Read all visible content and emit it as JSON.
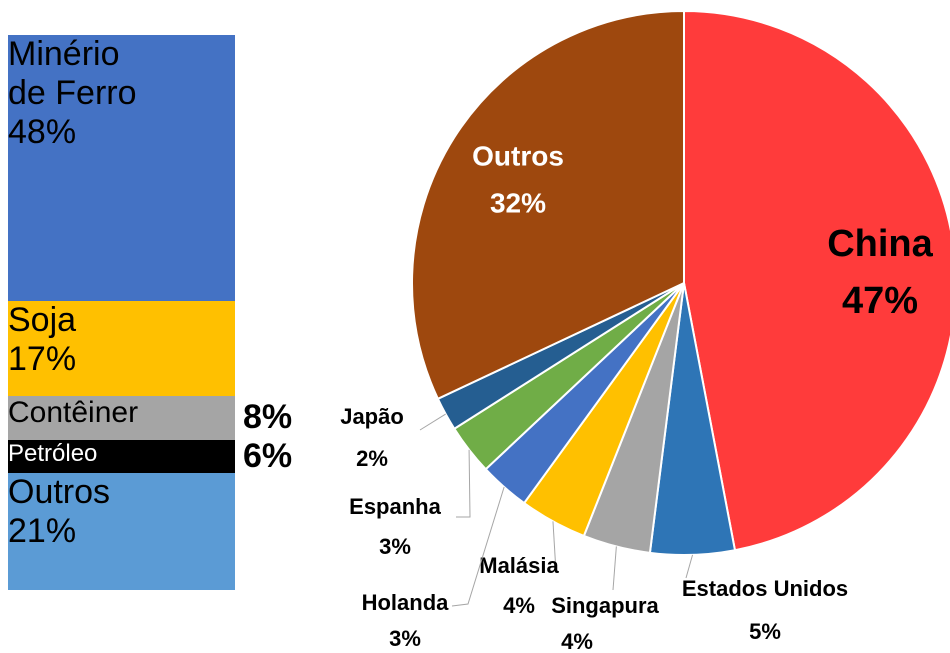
{
  "chart_data": [
    {
      "type": "stacked-bar",
      "categories": [
        "Minério de Ferro",
        "Soja",
        "Contêiner",
        "Petróleo",
        "Outros"
      ],
      "values": [
        48,
        17,
        8,
        6,
        21
      ],
      "value_labels": [
        "48%",
        "17%",
        "8%",
        "6%",
        "21%"
      ],
      "colors": [
        "#4472c4",
        "#ffc000",
        "#a5a5a5",
        "#000000",
        "#5b9bd5"
      ]
    },
    {
      "type": "pie",
      "categories": [
        "China",
        "Estados Unidos",
        "Singapura",
        "Malásia",
        "Holanda",
        "Espanha",
        "Japão",
        "Outros"
      ],
      "values": [
        47,
        5,
        4,
        4,
        3,
        3,
        2,
        32
      ],
      "value_labels": [
        "47%",
        "5%",
        "4%",
        "4%",
        "3%",
        "3%",
        "2%",
        "32%"
      ],
      "colors": [
        "#ff3b3b",
        "#2e75b6",
        "#a5a5a5",
        "#ffc000",
        "#4472c4",
        "#70ad47",
        "#255e91",
        "#9e480e"
      ]
    }
  ]
}
